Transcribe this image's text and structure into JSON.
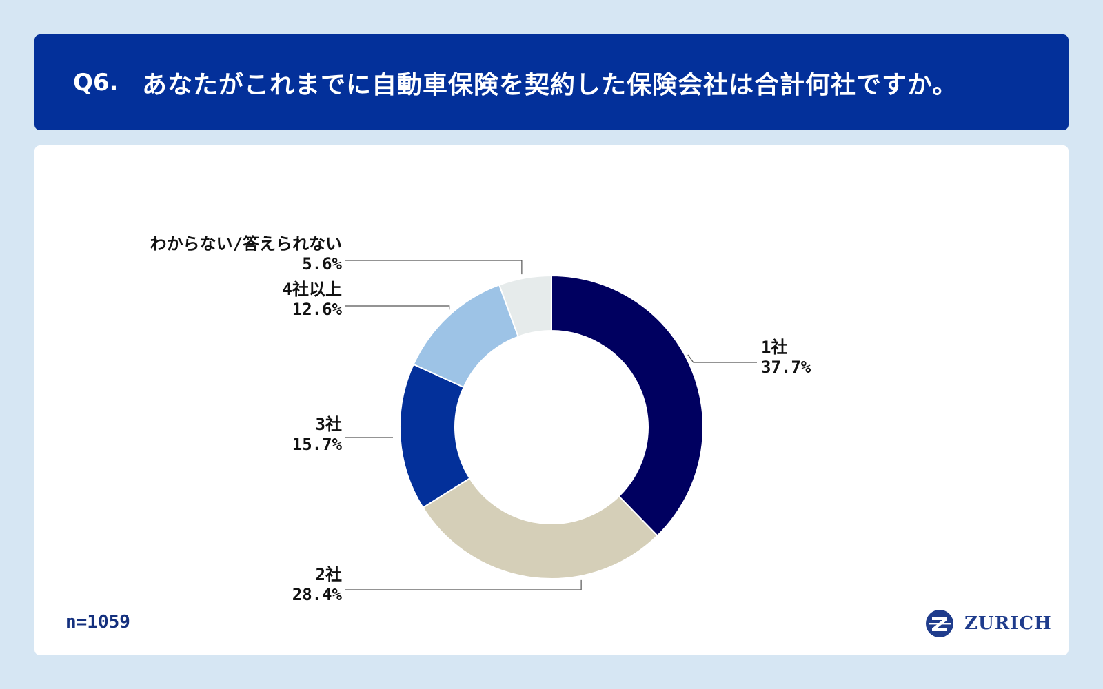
{
  "header": {
    "question_number": "Q6.",
    "question_text": "あなたがこれまでに自動車保険を契約した保険会社は合計何社ですか。"
  },
  "chart_data": {
    "type": "pie",
    "categories": [
      "1社",
      "2社",
      "3社",
      "4社以上",
      "わからない/答えられない"
    ],
    "values": [
      37.7,
      28.4,
      15.7,
      12.6,
      5.6
    ],
    "value_labels": [
      "37.7%",
      "28.4%",
      "15.7%",
      "12.6%",
      "5.6%"
    ],
    "colors": [
      "#000060",
      "#d5cfb8",
      "#03309a",
      "#9dc3e6",
      "#e6ebeb"
    ],
    "donut": true,
    "unit": "%"
  },
  "footer": {
    "sample_size": "n=1059",
    "brand_name": "ZURICH",
    "logo_icon": "zurich-z-logo-icon"
  }
}
